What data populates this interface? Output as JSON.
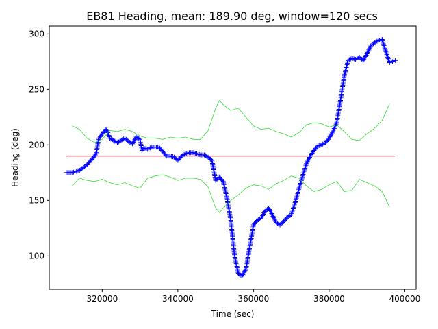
{
  "chart_data": {
    "type": "line",
    "title": "EB81 Heading, mean: 189.90 deg, window=120 secs",
    "xlabel": "Time (sec)",
    "ylabel": "Heading (deg)",
    "xlim": [
      306000,
      403000
    ],
    "ylim": [
      70,
      307
    ],
    "x_ticks": [
      320000,
      340000,
      360000,
      380000,
      400000
    ],
    "y_ticks": [
      100,
      150,
      200,
      250,
      300
    ],
    "grid": false,
    "mean": {
      "value": 189.9,
      "x": [
        310500,
        397500
      ],
      "color": "#b22222"
    },
    "series": [
      {
        "style": "marker-line",
        "color": "#0000ff",
        "x": [
          310500,
          312000,
          314000,
          316000,
          318000,
          318500,
          319000,
          320000,
          321000,
          321500,
          322000,
          323000,
          324000,
          325000,
          326000,
          327000,
          328000,
          329000,
          330000,
          330500,
          331000,
          332000,
          333000,
          334000,
          335000,
          336000,
          337000,
          338000,
          339000,
          340000,
          341000,
          342000,
          343000,
          344000,
          345000,
          346000,
          347000,
          348000,
          349000,
          350000,
          351000,
          352000,
          353000,
          354000,
          355000,
          356000,
          357000,
          358000,
          359000,
          360000,
          361000,
          362000,
          363000,
          364000,
          365000,
          366000,
          367000,
          368000,
          369000,
          370000,
          371000,
          372000,
          373000,
          374000,
          375000,
          376000,
          377000,
          378000,
          379000,
          380000,
          381000,
          382000,
          383000,
          384000,
          385000,
          386000,
          387000,
          388000,
          389000,
          390000,
          391000,
          392000,
          393000,
          394000,
          395000,
          396000,
          397500
        ],
        "y": [
          175,
          175,
          177,
          182,
          190,
          193,
          205,
          210,
          214,
          211,
          206,
          204,
          202,
          204,
          206,
          203,
          201,
          207,
          205,
          195,
          197,
          196,
          198,
          198,
          198,
          194,
          190,
          190,
          189,
          186,
          190,
          192,
          193,
          193,
          192,
          191,
          191,
          189,
          186,
          168,
          171,
          167,
          152,
          132,
          100,
          84,
          82,
          88,
          108,
          128,
          132,
          134,
          140,
          143,
          137,
          130,
          128,
          131,
          135,
          137,
          148,
          160,
          172,
          183,
          190,
          195,
          199,
          200,
          202,
          206,
          212,
          220,
          240,
          262,
          276,
          278,
          277,
          279,
          276,
          282,
          289,
          292,
          294,
          295,
          284,
          274,
          276
        ]
      },
      {
        "style": "line",
        "color": "#33dd33",
        "x": [
          312000,
          314000,
          316000,
          318000,
          320000,
          322000,
          324000,
          326000,
          328000,
          330000,
          332000,
          334000,
          336000,
          338000,
          340000,
          342000,
          344000,
          346000,
          348000,
          350000,
          351000,
          352000,
          354000,
          356000,
          358000,
          360000,
          362000,
          364000,
          366000,
          368000,
          370000,
          372000,
          374000,
          376000,
          378000,
          380000,
          382000,
          384000,
          386000,
          388000,
          390000,
          392000,
          394000,
          396000
        ],
        "y": [
          217,
          214,
          206,
          202,
          205,
          213,
          212,
          214,
          212,
          208,
          206,
          206,
          205,
          207,
          206,
          207,
          205,
          205,
          213,
          233,
          240,
          236,
          231,
          233,
          225,
          217,
          214,
          215,
          212,
          210,
          207,
          211,
          218,
          220,
          219,
          216,
          218,
          212,
          205,
          204,
          210,
          215,
          222,
          237
        ]
      },
      {
        "style": "line",
        "color": "#33dd33",
        "x": [
          312000,
          314000,
          316000,
          318000,
          320000,
          322000,
          324000,
          326000,
          328000,
          330000,
          332000,
          334000,
          336000,
          338000,
          340000,
          342000,
          344000,
          346000,
          348000,
          350000,
          351000,
          352000,
          354000,
          356000,
          358000,
          360000,
          362000,
          364000,
          366000,
          368000,
          370000,
          372000,
          374000,
          376000,
          378000,
          380000,
          382000,
          384000,
          386000,
          388000,
          390000,
          392000,
          394000,
          396000
        ],
        "y": [
          163,
          170,
          168,
          167,
          169,
          166,
          164,
          166,
          163,
          161,
          170,
          172,
          173,
          171,
          168,
          170,
          170,
          169,
          162,
          143,
          139,
          143,
          150,
          155,
          161,
          164,
          163,
          160,
          165,
          168,
          172,
          170,
          163,
          158,
          160,
          164,
          167,
          158,
          159,
          169,
          166,
          163,
          158,
          144
        ]
      }
    ]
  }
}
